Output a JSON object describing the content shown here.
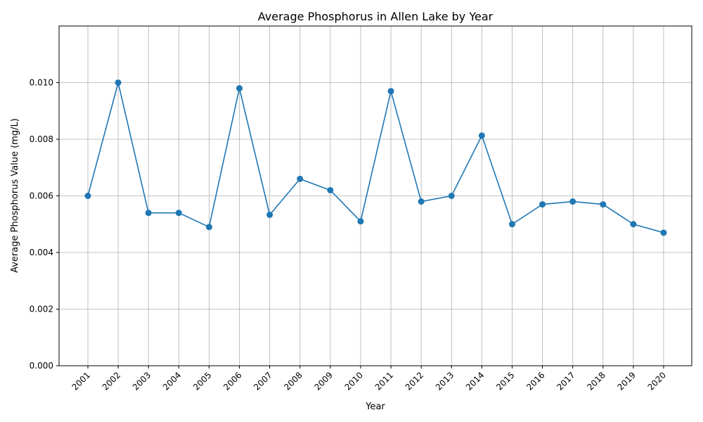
{
  "chart_data": {
    "type": "line",
    "title": "Average Phosphorus in Allen Lake by Year",
    "xlabel": "Year",
    "ylabel": "Average Phosphorus Value (mg/L)",
    "categories": [
      "2001",
      "2002",
      "2003",
      "2004",
      "2005",
      "2006",
      "2007",
      "2008",
      "2009",
      "2010",
      "2011",
      "2012",
      "2013",
      "2014",
      "2015",
      "2016",
      "2017",
      "2018",
      "2019",
      "2020"
    ],
    "series": [
      {
        "values": [
          0.006,
          0.01,
          0.0054,
          0.0054,
          0.0049,
          0.0098,
          0.00533,
          0.0066,
          0.0062,
          0.0051,
          0.0097,
          0.0058,
          0.006,
          0.00813,
          0.005,
          0.0057,
          0.0058,
          0.0057,
          0.005,
          0.0047
        ],
        "color": "#1f77b4",
        "marker": "circle"
      }
    ],
    "ylim": [
      0,
      0.012
    ],
    "yticks": [
      "0.000",
      "0.002",
      "0.004",
      "0.006",
      "0.008",
      "0.010"
    ],
    "ytick_values": [
      0,
      0.002,
      0.004,
      0.006,
      0.008,
      0.01
    ],
    "grid": true,
    "legend": "none"
  }
}
